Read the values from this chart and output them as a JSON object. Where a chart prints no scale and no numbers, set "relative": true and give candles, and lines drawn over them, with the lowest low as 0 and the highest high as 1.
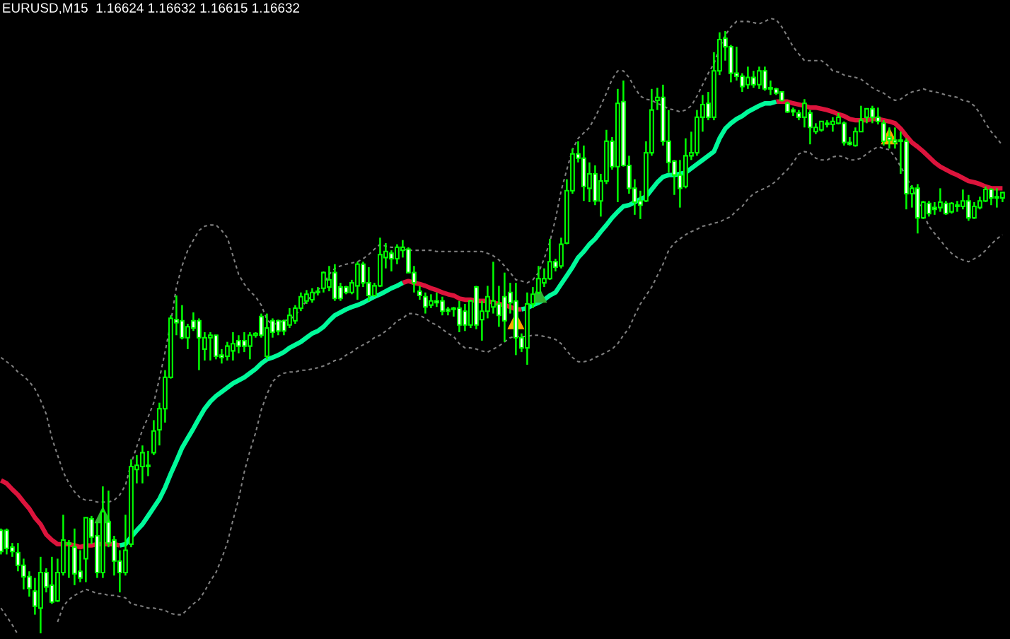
{
  "chart_data": {
    "type": "candlestick",
    "title": "EURUSD,M15  1.16624 1.16632 1.16615 1.16632",
    "relative": true,
    "color": "#00ff00",
    "categories": [
      null,
      null,
      null,
      null,
      null,
      null,
      null,
      null,
      null,
      null,
      null,
      null,
      null,
      null,
      null,
      null,
      null,
      null,
      null,
      null,
      null,
      null,
      null,
      null,
      null,
      null,
      null,
      null,
      null,
      null,
      null,
      null,
      null,
      null,
      null,
      null,
      null,
      null,
      null,
      null,
      null,
      null,
      null,
      null,
      null,
      null,
      null,
      null,
      null,
      null,
      null,
      null,
      null,
      null,
      null,
      null,
      null,
      null,
      null,
      null,
      null,
      null,
      null,
      null,
      null,
      null,
      null,
      null,
      null,
      null,
      null,
      null,
      null,
      null,
      null,
      null,
      null,
      null,
      null,
      null,
      null,
      null,
      null,
      null,
      null,
      null,
      null,
      null,
      null,
      null,
      null,
      null,
      null,
      null,
      null,
      null,
      null,
      null,
      null,
      null,
      null,
      null,
      null,
      null,
      null,
      null,
      null,
      null,
      null,
      null,
      null,
      null,
      null,
      null,
      null,
      null,
      null,
      null,
      null,
      null,
      null,
      null,
      null,
      null,
      null,
      null,
      null,
      null,
      null,
      null,
      null,
      null,
      null,
      null,
      null,
      null,
      null,
      null,
      null,
      null,
      null,
      null,
      null,
      null,
      null,
      null,
      null,
      null,
      null,
      null,
      null,
      null,
      null,
      null,
      null,
      null,
      null,
      null,
      null,
      null,
      null,
      null,
      null,
      null,
      null,
      null,
      null,
      null,
      null,
      null,
      null,
      null,
      null,
      null,
      null,
      null,
      null,
      null
    ],
    "ohlc": [
      [
        0.171,
        0.174,
        0.131,
        0.136
      ],
      [
        0.171,
        0.174,
        0.131,
        0.141
      ],
      [
        0.143,
        0.15,
        0.127,
        0.136
      ],
      [
        0.134,
        0.15,
        0.103,
        0.113
      ],
      [
        0.113,
        0.124,
        0.073,
        0.094
      ],
      [
        0.094,
        0.103,
        0.061,
        0.075
      ],
      [
        0.07,
        0.092,
        0.031,
        0.045
      ],
      [
        0.042,
        0.127,
        0,
        0.101
      ],
      [
        0.101,
        0.108,
        0.068,
        0.077
      ],
      [
        0.08,
        0.127,
        0.049,
        0.052
      ],
      [
        0.054,
        0.124,
        0.052,
        0.101
      ],
      [
        0.101,
        0.197,
        0.096,
        0.155
      ],
      [
        0.148,
        0.155,
        0.092,
        0.15
      ],
      [
        0.143,
        0.174,
        0.08,
        0.099
      ],
      [
        0.103,
        0.138,
        0.085,
        0.092
      ],
      [
        0.124,
        0.192,
        0.085,
        0.192
      ],
      [
        0.19,
        0.195,
        0.148,
        0.16
      ],
      [
        0.162,
        0.185,
        0.092,
        0.101
      ],
      [
        0.101,
        0.244,
        0.092,
        0.202
      ],
      [
        0.185,
        0.237,
        0.143,
        0.15
      ],
      [
        0.155,
        0.162,
        0.096,
        0.12
      ],
      [
        0.12,
        0.138,
        0.068,
        0.101
      ],
      [
        0.101,
        0.197,
        0.096,
        0.138
      ],
      [
        0.148,
        0.289,
        0.143,
        0.277
      ],
      [
        0.272,
        0.296,
        0.249,
        0.279
      ],
      [
        0.277,
        0.312,
        0.249,
        0.3
      ],
      [
        0.277,
        0.303,
        0.261,
        0.279
      ],
      [
        0.3,
        0.354,
        0.296,
        0.336
      ],
      [
        0.338,
        0.383,
        0.312,
        0.373
      ],
      [
        0.373,
        0.437,
        0.35,
        0.425
      ],
      [
        0.425,
        0.528,
        0.423,
        0.523
      ],
      [
        0.521,
        0.561,
        0.495,
        0.516
      ],
      [
        0.519,
        0.545,
        0.488,
        0.491
      ],
      [
        0.491,
        0.514,
        0.472,
        0.509
      ],
      [
        0.519,
        0.533,
        0.502,
        0.507
      ],
      [
        0.519,
        0.523,
        0.437,
        0.491
      ],
      [
        0.472,
        0.5,
        0.453,
        0.491
      ],
      [
        0.491,
        0.5,
        0.453,
        0.495
      ],
      [
        0.495,
        0.495,
        0.455,
        0.46
      ],
      [
        0.462,
        0.472,
        0.448,
        0.458
      ],
      [
        0.46,
        0.484,
        0.453,
        0.477
      ],
      [
        0.469,
        0.5,
        0.453,
        0.481
      ],
      [
        0.486,
        0.495,
        0.465,
        0.477
      ],
      [
        0.486,
        0.5,
        0.467,
        0.477
      ],
      [
        0.477,
        0.5,
        0.455,
        0.495
      ],
      [
        0.495,
        0.5,
        0.491,
        0.498
      ],
      [
        0.526,
        0.531,
        0.491,
        0.495
      ],
      [
        0.46,
        0.531,
        0.455,
        0.507
      ],
      [
        0.519,
        0.523,
        0.491,
        0.5
      ],
      [
        0.519,
        0.521,
        0.495,
        0.502
      ],
      [
        0.519,
        0.521,
        0.495,
        0.502
      ],
      [
        0.512,
        0.54,
        0.507,
        0.528
      ],
      [
        0.519,
        0.545,
        0.514,
        0.54
      ],
      [
        0.54,
        0.566,
        0.535,
        0.559
      ],
      [
        0.552,
        0.57,
        0.547,
        0.563
      ],
      [
        0.554,
        0.573,
        0.549,
        0.566
      ],
      [
        0.566,
        0.575,
        0.561,
        0.568
      ],
      [
        0.573,
        0.601,
        0.566,
        0.599
      ],
      [
        0.575,
        0.61,
        0.568,
        0.587
      ],
      [
        0.599,
        0.613,
        0.552,
        0.556
      ],
      [
        0.575,
        0.582,
        0.552,
        0.556
      ],
      [
        0.575,
        0.577,
        0.563,
        0.566
      ],
      [
        0.566,
        0.587,
        0.563,
        0.582
      ],
      [
        0.577,
        0.617,
        0.554,
        0.613
      ],
      [
        0.613,
        0.617,
        0.575,
        0.582
      ],
      [
        0.582,
        0.608,
        0.552,
        0.561
      ],
      [
        0.561,
        0.582,
        0.559,
        0.577
      ],
      [
        0.577,
        0.657,
        0.575,
        0.629
      ],
      [
        0.624,
        0.648,
        0.606,
        0.634
      ],
      [
        0.631,
        0.636,
        0.601,
        0.622
      ],
      [
        0.622,
        0.646,
        0.613,
        0.641
      ],
      [
        0.636,
        0.653,
        0.624,
        0.641
      ],
      [
        0.638,
        0.641,
        0.599,
        0.599
      ],
      [
        0.599,
        0.61,
        0.566,
        0.582
      ],
      [
        0.568,
        0.577,
        0.554,
        0.561
      ],
      [
        0.559,
        0.566,
        0.531,
        0.542
      ],
      [
        0.545,
        0.563,
        0.54,
        0.552
      ],
      [
        0.552,
        0.566,
        0.542,
        0.549
      ],
      [
        0.552,
        0.559,
        0.528,
        0.535
      ],
      [
        0.538,
        0.542,
        0.528,
        0.535
      ],
      [
        0.538,
        0.542,
        0.526,
        0.54
      ],
      [
        0.54,
        0.552,
        0.5,
        0.512
      ],
      [
        0.535,
        0.547,
        0.502,
        0.512
      ],
      [
        0.512,
        0.554,
        0.507,
        0.552
      ],
      [
        0.575,
        0.577,
        0.505,
        0.512
      ],
      [
        0.521,
        0.552,
        0.486,
        0.535
      ],
      [
        0.535,
        0.577,
        0.523,
        0.559
      ],
      [
        0.542,
        0.617,
        0.531,
        0.552
      ],
      [
        0.547,
        0.577,
        0.509,
        0.528
      ],
      [
        0.559,
        0.599,
        0.484,
        0.519
      ],
      [
        0.566,
        0.582,
        0.531,
        0.549
      ],
      [
        0.552,
        0.582,
        0.462,
        0.491
      ],
      [
        0.491,
        0.498,
        0.467,
        0.474
      ],
      [
        0.474,
        0.566,
        0.446,
        0.547
      ],
      [
        0.547,
        0.575,
        0.54,
        0.563
      ],
      [
        0.566,
        0.61,
        0.563,
        0.589
      ],
      [
        0.582,
        0.606,
        0.575,
        0.589
      ],
      [
        0.589,
        0.655,
        0.587,
        0.617
      ],
      [
        0.617,
        0.622,
        0.601,
        0.608
      ],
      [
        0.61,
        0.657,
        0.606,
        0.646
      ],
      [
        0.648,
        0.754,
        0.646,
        0.735
      ],
      [
        0.735,
        0.805,
        0.73,
        0.796
      ],
      [
        0.796,
        0.817,
        0.782,
        0.789
      ],
      [
        0.789,
        0.81,
        0.718,
        0.742
      ],
      [
        0.739,
        0.782,
        0.716,
        0.763
      ],
      [
        0.763,
        0.777,
        0.711,
        0.718
      ],
      [
        0.718,
        0.763,
        0.692,
        0.751
      ],
      [
        0.751,
        0.836,
        0.746,
        0.817
      ],
      [
        0.817,
        0.824,
        0.77,
        0.775
      ],
      [
        0.775,
        0.904,
        0.716,
        0.88
      ],
      [
        0.883,
        0.918,
        0.775,
        0.777
      ],
      [
        0.777,
        0.793,
        0.73,
        0.739
      ],
      [
        0.739,
        0.754,
        0.695,
        0.716
      ],
      [
        0.718,
        0.735,
        0.688,
        0.711
      ],
      [
        0.718,
        0.817,
        0.716,
        0.798
      ],
      [
        0.798,
        0.904,
        0.793,
        0.869
      ],
      [
        0.885,
        0.906,
        0.869,
        0.89
      ],
      [
        0.89,
        0.911,
        0.81,
        0.817
      ],
      [
        0.817,
        0.869,
        0.765,
        0.782
      ],
      [
        0.784,
        0.786,
        0.728,
        0.761
      ],
      [
        0.761,
        0.786,
        0.707,
        0.739
      ],
      [
        0.742,
        0.822,
        0.739,
        0.793
      ],
      [
        0.793,
        0.833,
        0.786,
        0.798
      ],
      [
        0.798,
        0.869,
        0.793,
        0.857
      ],
      [
        0.857,
        0.894,
        0.833,
        0.878
      ],
      [
        0.88,
        0.899,
        0.852,
        0.857
      ],
      [
        0.857,
        0.965,
        0.852,
        0.934
      ],
      [
        0.934,
        0.998,
        0.927,
        0.986
      ],
      [
        0.988,
        1,
        0.951,
        0.974
      ],
      [
        0.974,
        0.977,
        0.915,
        0.93
      ],
      [
        0.93,
        0.974,
        0.918,
        0.925
      ],
      [
        0.925,
        0.93,
        0.899,
        0.908
      ],
      [
        0.911,
        0.941,
        0.904,
        0.923
      ],
      [
        0.923,
        0.934,
        0.906,
        0.911
      ],
      [
        0.911,
        0.941,
        0.904,
        0.934
      ],
      [
        0.934,
        0.941,
        0.901,
        0.904
      ],
      [
        0.906,
        0.918,
        0.894,
        0.904
      ],
      [
        0.904,
        0.906,
        0.894,
        0.897
      ],
      [
        0.899,
        0.899,
        0.883,
        0.885
      ],
      [
        0.88,
        0.883,
        0.864,
        0.866
      ],
      [
        0.869,
        0.873,
        0.859,
        0.866
      ],
      [
        0.864,
        0.869,
        0.852,
        0.857
      ],
      [
        0.857,
        0.887,
        0.84,
        0.88
      ],
      [
        0.864,
        0.869,
        0.812,
        0.84
      ],
      [
        0.833,
        0.847,
        0.829,
        0.84
      ],
      [
        0.836,
        0.85,
        0.833,
        0.85
      ],
      [
        0.847,
        0.852,
        0.84,
        0.845
      ],
      [
        0.845,
        0.857,
        0.833,
        0.85
      ],
      [
        0.847,
        0.864,
        0.845,
        0.857
      ],
      [
        0.847,
        0.85,
        0.81,
        0.815
      ],
      [
        0.815,
        0.824,
        0.81,
        0.812
      ],
      [
        0.81,
        0.84,
        0.808,
        0.833
      ],
      [
        0.833,
        0.876,
        0.833,
        0.852
      ],
      [
        0.857,
        0.871,
        0.847,
        0.871
      ],
      [
        0.871,
        0.876,
        0.847,
        0.857
      ],
      [
        0.857,
        0.873,
        0.845,
        0.85
      ],
      [
        0.847,
        0.852,
        0.81,
        0.817
      ],
      [
        0.824,
        0.84,
        0.805,
        0.819
      ],
      [
        0.819,
        0.84,
        0.805,
        0.815
      ],
      [
        0.817,
        0.833,
        0.763,
        0.819
      ],
      [
        0.817,
        0.822,
        0.704,
        0.73
      ],
      [
        0.73,
        0.744,
        0.707,
        0.739
      ],
      [
        0.739,
        0.746,
        0.664,
        0.69
      ],
      [
        0.69,
        0.718,
        0.688,
        0.716
      ],
      [
        0.714,
        0.718,
        0.692,
        0.697
      ],
      [
        0.707,
        0.716,
        0.695,
        0.704
      ],
      [
        0.707,
        0.739,
        0.7,
        0.716
      ],
      [
        0.714,
        0.718,
        0.695,
        0.697
      ],
      [
        0.7,
        0.716,
        0.697,
        0.714
      ],
      [
        0.711,
        0.718,
        0.7,
        0.709
      ],
      [
        0.709,
        0.737,
        0.704,
        0.718
      ],
      [
        0.718,
        0.728,
        0.685,
        0.69
      ],
      [
        0.69,
        0.716,
        0.688,
        0.709
      ],
      [
        0.707,
        0.725,
        0.704,
        0.718
      ],
      [
        0.718,
        0.742,
        0.716,
        0.737
      ],
      [
        0.737,
        0.739,
        0.711,
        0.723
      ],
      [
        0.725,
        0.739,
        0.707,
        0.723
      ],
      [
        0.723,
        0.732,
        0.716,
        0.732
      ]
    ],
    "series": [
      {
        "type": "line",
        "color": "#dc143c",
        "line_style": "solid",
        "values": [
          0.254,
          0.249,
          0.239,
          0.23,
          0.218,
          0.207,
          0.192,
          0.181,
          0.164,
          0.155,
          0.148,
          0.148,
          0.148,
          0.146,
          0.143,
          0.146,
          0.146,
          0.148,
          0.148,
          0.148,
          0.148,
          0.146,
          null,
          null,
          null,
          null,
          null,
          null,
          null,
          null,
          null,
          null,
          null,
          null,
          null,
          null,
          null,
          null,
          null,
          null,
          null,
          null,
          null,
          null,
          null,
          null,
          null,
          null,
          null,
          null,
          null,
          null,
          null,
          null,
          null,
          null,
          null,
          null,
          null,
          null,
          null,
          null,
          null,
          null,
          null,
          null,
          null,
          null,
          null,
          null,
          null,
          0.582,
          0.585,
          0.582,
          0.58,
          0.577,
          0.573,
          0.57,
          0.566,
          0.563,
          0.561,
          0.556,
          0.554,
          0.554,
          0.552,
          0.552,
          0.552,
          0.549,
          0.547,
          0.545,
          0.542,
          0.538,
          0.538,
          null,
          null,
          null,
          null,
          null,
          null,
          null,
          null,
          null,
          null,
          null,
          null,
          null,
          null,
          null,
          null,
          null,
          null,
          null,
          null,
          null,
          null,
          null,
          null,
          null,
          null,
          null,
          null,
          null,
          null,
          null,
          null,
          null,
          null,
          null,
          null,
          null,
          null,
          null,
          null,
          null,
          null,
          null,
          null,
          0.883,
          0.883,
          0.883,
          0.88,
          0.878,
          0.876,
          0.873,
          0.873,
          0.871,
          0.869,
          0.866,
          0.862,
          0.859,
          0.854,
          0.852,
          0.852,
          0.852,
          0.854,
          0.854,
          0.852,
          0.85,
          0.847,
          0.838,
          0.826,
          0.815,
          0.808,
          0.8,
          0.791,
          0.782,
          0.775,
          0.77,
          0.765,
          0.761,
          0.756,
          0.751,
          0.749,
          0.746,
          0.742,
          0.739,
          0.739,
          0.739
        ]
      },
      {
        "type": "line",
        "color": "#00fa9a",
        "line_style": "solid",
        "values": [
          null,
          null,
          null,
          null,
          null,
          null,
          null,
          null,
          null,
          null,
          null,
          null,
          null,
          null,
          null,
          null,
          null,
          null,
          null,
          null,
          null,
          0.146,
          0.148,
          0.16,
          0.171,
          0.181,
          0.195,
          0.209,
          0.223,
          0.242,
          0.265,
          0.286,
          0.308,
          0.324,
          0.34,
          0.357,
          0.373,
          0.385,
          0.394,
          0.401,
          0.408,
          0.415,
          0.42,
          0.425,
          0.432,
          0.439,
          0.448,
          0.455,
          0.458,
          0.462,
          0.467,
          0.474,
          0.479,
          0.484,
          0.491,
          0.498,
          0.502,
          0.509,
          0.519,
          0.528,
          0.533,
          0.538,
          0.542,
          0.545,
          0.549,
          0.554,
          0.559,
          0.563,
          0.568,
          0.573,
          0.577,
          0.582,
          null,
          null,
          null,
          null,
          null,
          null,
          null,
          null,
          null,
          null,
          null,
          null,
          null,
          null,
          null,
          null,
          null,
          null,
          null,
          null,
          0.538,
          0.54,
          0.545,
          0.549,
          0.554,
          0.561,
          0.566,
          0.58,
          0.594,
          0.608,
          0.624,
          0.634,
          0.646,
          0.655,
          0.667,
          0.678,
          0.69,
          0.7,
          0.709,
          0.711,
          0.716,
          0.721,
          0.725,
          0.737,
          0.749,
          0.758,
          0.761,
          0.761,
          0.763,
          0.765,
          0.772,
          0.779,
          0.786,
          0.793,
          0.8,
          0.822,
          0.838,
          0.847,
          0.854,
          0.859,
          0.866,
          0.871,
          0.876,
          0.88,
          0.88,
          0.883,
          null,
          null,
          null,
          null,
          null,
          null,
          null,
          null,
          null,
          null,
          null,
          null,
          null,
          null,
          null,
          null,
          null,
          null,
          null,
          null,
          null,
          null,
          null,
          null,
          null,
          null,
          null,
          null,
          null,
          null,
          null,
          null,
          null,
          null,
          null,
          null,
          null,
          null,
          null,
          null
        ]
      },
      {
        "type": "line",
        "color": "#808080",
        "line_style": "dashed",
        "values": [
          0.458,
          0.451,
          0.444,
          0.434,
          0.427,
          0.418,
          0.406,
          0.387,
          0.364,
          0.324,
          0.296,
          0.268,
          0.249,
          0.235,
          0.225,
          0.221,
          0.221,
          0.218,
          0.218,
          0.218,
          0.221,
          0.23,
          0.246,
          0.282,
          0.31,
          0.338,
          0.359,
          0.383,
          0.423,
          0.467,
          0.516,
          0.575,
          0.61,
          0.636,
          0.653,
          0.669,
          0.676,
          0.678,
          0.678,
          0.669,
          0.657,
          0.627,
          0.596,
          0.58,
          0.568,
          0.559,
          0.545,
          0.521,
          0.512,
          0.516,
          0.519,
          0.521,
          0.528,
          0.54,
          0.552,
          0.561,
          0.57,
          0.58,
          0.596,
          0.606,
          0.61,
          0.613,
          0.615,
          0.617,
          0.622,
          0.629,
          0.638,
          0.646,
          0.643,
          0.641,
          0.641,
          0.638,
          0.636,
          0.636,
          0.636,
          0.636,
          0.636,
          0.634,
          0.634,
          0.634,
          0.634,
          0.634,
          0.634,
          0.634,
          0.634,
          0.634,
          0.631,
          0.627,
          0.62,
          0.61,
          0.599,
          0.587,
          0.585,
          0.582,
          0.587,
          0.599,
          0.622,
          0.65,
          0.688,
          0.735,
          0.77,
          0.803,
          0.822,
          0.831,
          0.84,
          0.857,
          0.876,
          0.897,
          0.92,
          0.934,
          0.934,
          0.923,
          0.906,
          0.892,
          0.887,
          0.885,
          0.88,
          0.876,
          0.871,
          0.869,
          0.866,
          0.869,
          0.876,
          0.892,
          0.911,
          0.93,
          0.946,
          0.972,
          0.993,
          1.007,
          1.016,
          1.016,
          1.016,
          1.014,
          1.012,
          1.016,
          1.021,
          1.019,
          1.007,
          0.991,
          0.974,
          0.962,
          0.951,
          0.951,
          0.951,
          0.951,
          0.944,
          0.934,
          0.932,
          0.927,
          0.925,
          0.923,
          0.92,
          0.913,
          0.906,
          0.901,
          0.897,
          0.89,
          0.885,
          0.887,
          0.894,
          0.899,
          0.901,
          0.904,
          0.901,
          0.899,
          0.897,
          0.894,
          0.892,
          0.89,
          0.885,
          0.883,
          0.876,
          0.864,
          0.847,
          0.833,
          0.822,
          0.81
        ]
      },
      {
        "type": "line",
        "color": "#808080",
        "line_style": "dashed",
        "values": [
          0.042,
          0.028,
          0.014,
          -0.002,
          null,
          null,
          null,
          null,
          null,
          null,
          0.019,
          0.045,
          0.056,
          0.063,
          0.068,
          0.073,
          0.07,
          0.066,
          0.066,
          0.063,
          0.063,
          0.061,
          0.059,
          0.049,
          0.047,
          0.045,
          0.042,
          0.042,
          0.04,
          0.038,
          0.033,
          0.031,
          0.031,
          0.04,
          0.049,
          0.056,
          0.07,
          0.087,
          0.101,
          0.124,
          0.15,
          0.188,
          0.223,
          0.268,
          0.303,
          0.333,
          0.371,
          0.397,
          0.418,
          0.427,
          0.432,
          0.434,
          0.434,
          0.437,
          0.437,
          0.439,
          0.441,
          0.444,
          0.448,
          0.453,
          0.455,
          0.462,
          0.467,
          0.474,
          0.479,
          0.484,
          0.491,
          0.495,
          0.502,
          0.509,
          0.519,
          0.523,
          0.531,
          0.531,
          0.528,
          0.523,
          0.516,
          0.512,
          0.505,
          0.498,
          0.493,
          0.481,
          0.474,
          0.474,
          0.472,
          0.469,
          0.467,
          0.472,
          0.477,
          0.484,
          0.491,
          0.493,
          0.493,
          0.493,
          0.495,
          0.495,
          0.493,
          0.491,
          0.488,
          0.481,
          0.469,
          0.458,
          0.451,
          0.451,
          0.453,
          0.458,
          0.462,
          0.467,
          0.472,
          0.481,
          0.495,
          0.507,
          0.528,
          0.547,
          0.561,
          0.575,
          0.594,
          0.613,
          0.636,
          0.648,
          0.655,
          0.662,
          0.667,
          0.671,
          0.676,
          0.678,
          0.681,
          0.683,
          0.688,
          0.692,
          0.702,
          0.709,
          0.721,
          0.73,
          0.735,
          0.739,
          0.744,
          0.751,
          0.761,
          0.77,
          0.782,
          0.796,
          0.8,
          0.798,
          0.789,
          0.786,
          0.786,
          0.791,
          0.793,
          0.791,
          0.786,
          0.786,
          0.789,
          0.796,
          0.803,
          0.808,
          0.805,
          0.803,
          0.791,
          0.775,
          0.758,
          0.739,
          0.721,
          0.697,
          0.676,
          0.664,
          0.653,
          0.641,
          0.631,
          0.624,
          0.62,
          0.617,
          0.622,
          0.627,
          0.636,
          0.646,
          0.655,
          0.662
        ]
      },
      {
        "type": "scatter",
        "color": "#33b233",
        "marker": "triangle",
        "values": [
          null,
          null,
          null,
          null,
          null,
          null,
          null,
          null,
          null,
          null,
          null,
          null,
          null,
          null,
          null,
          null,
          null,
          null,
          0.197,
          null,
          null,
          null,
          null,
          null,
          null,
          null,
          null,
          null,
          null,
          null,
          null,
          null,
          null,
          null,
          null,
          null,
          null,
          null,
          null,
          null,
          null,
          null,
          null,
          null,
          null,
          null,
          null,
          null,
          null,
          null,
          null,
          null,
          null,
          null,
          null,
          null,
          null,
          null,
          null,
          null,
          null,
          null,
          null,
          null,
          null,
          null,
          null,
          null,
          null,
          null,
          null,
          null,
          null,
          null,
          null,
          null,
          null,
          null,
          null,
          null,
          null,
          null,
          null,
          null,
          null,
          null,
          null,
          null,
          null,
          null,
          null,
          null,
          null,
          null,
          null,
          0.563,
          null,
          null,
          null,
          null,
          null,
          null,
          null,
          null,
          null,
          null,
          null,
          null,
          null,
          null,
          null,
          null,
          null,
          null,
          null,
          null,
          null,
          null,
          null,
          null,
          null,
          null,
          null,
          null,
          null,
          null,
          null,
          null,
          null,
          null,
          null,
          null,
          null,
          null,
          null,
          null,
          null,
          null,
          null,
          null,
          null,
          null,
          null,
          null,
          null,
          null,
          null,
          null,
          null,
          null,
          null,
          null,
          null,
          null,
          null,
          null,
          null,
          null,
          null,
          null,
          null,
          null,
          null,
          null,
          null,
          null,
          null,
          null,
          null,
          null,
          null,
          null,
          null,
          null,
          null,
          null,
          null,
          null
        ]
      },
      {
        "type": "scatter",
        "color": "#ffa500",
        "marker": "triangle",
        "values": [
          null,
          null,
          null,
          null,
          null,
          null,
          null,
          null,
          null,
          null,
          null,
          null,
          null,
          null,
          null,
          null,
          null,
          null,
          null,
          null,
          null,
          null,
          null,
          null,
          null,
          null,
          null,
          null,
          null,
          null,
          null,
          null,
          null,
          null,
          null,
          null,
          null,
          null,
          null,
          null,
          null,
          null,
          null,
          null,
          null,
          null,
          null,
          null,
          null,
          null,
          null,
          null,
          null,
          null,
          null,
          null,
          null,
          null,
          null,
          null,
          null,
          null,
          null,
          null,
          null,
          null,
          null,
          null,
          null,
          null,
          null,
          null,
          null,
          null,
          null,
          null,
          null,
          null,
          null,
          null,
          null,
          null,
          null,
          null,
          null,
          null,
          null,
          null,
          null,
          null,
          null,
          0.519,
          null,
          null,
          null,
          null,
          null,
          null,
          null,
          null,
          null,
          null,
          null,
          null,
          null,
          null,
          null,
          null,
          null,
          null,
          null,
          null,
          null,
          null,
          null,
          null,
          null,
          null,
          null,
          null,
          null,
          null,
          null,
          null,
          null,
          null,
          null,
          null,
          null,
          null,
          null,
          null,
          null,
          null,
          null,
          null,
          null,
          null,
          null,
          null,
          null,
          null,
          null,
          null,
          null,
          null,
          null,
          null,
          null,
          null,
          null,
          null,
          null,
          null,
          null,
          null,
          null,
          0.826,
          null,
          null,
          null,
          null,
          null,
          null,
          null,
          null,
          null,
          null,
          null,
          null,
          null,
          null,
          null,
          null,
          null,
          null,
          null,
          null
        ]
      }
    ]
  }
}
